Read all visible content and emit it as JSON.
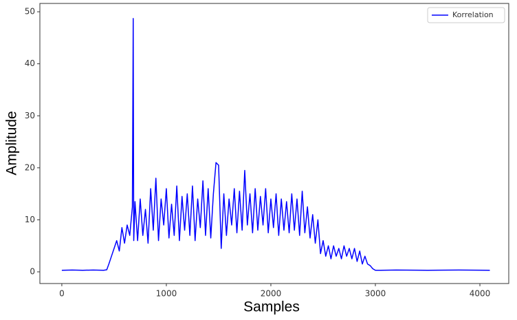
{
  "chart_data": {
    "type": "line",
    "x_label": "Samples",
    "y_label": "Amplitude",
    "x": [
      0,
      100,
      200,
      300,
      400,
      430,
      450,
      475,
      500,
      525,
      550,
      575,
      600,
      625,
      650,
      675,
      683,
      688,
      700,
      725,
      750,
      775,
      800,
      825,
      850,
      875,
      900,
      925,
      950,
      975,
      1000,
      1025,
      1050,
      1075,
      1100,
      1125,
      1150,
      1175,
      1200,
      1225,
      1250,
      1275,
      1300,
      1325,
      1350,
      1375,
      1400,
      1425,
      1450,
      1475,
      1500,
      1525,
      1550,
      1575,
      1600,
      1625,
      1650,
      1675,
      1700,
      1725,
      1750,
      1775,
      1800,
      1825,
      1850,
      1875,
      1900,
      1925,
      1950,
      1975,
      2000,
      2025,
      2050,
      2075,
      2100,
      2125,
      2150,
      2175,
      2200,
      2225,
      2250,
      2275,
      2300,
      2325,
      2350,
      2375,
      2400,
      2425,
      2450,
      2475,
      2500,
      2525,
      2550,
      2575,
      2600,
      2625,
      2650,
      2675,
      2700,
      2725,
      2750,
      2775,
      2800,
      2825,
      2850,
      2875,
      2900,
      2925,
      2950,
      2975,
      3000,
      3050,
      3200,
      3500,
      3800,
      4095
    ],
    "series": [
      {
        "name": "Korrelation",
        "color": "#0000ff",
        "values": [
          0.3,
          0.35,
          0.3,
          0.35,
          0.3,
          0.4,
          1.5,
          3,
          4.5,
          6,
          4,
          8.5,
          5.5,
          9,
          7,
          12.5,
          48.7,
          6,
          13.5,
          6,
          14,
          7,
          12,
          5.5,
          16,
          8,
          18,
          6,
          14,
          9,
          16,
          6.5,
          13,
          7,
          16.5,
          6,
          14.5,
          8,
          15,
          7,
          16.5,
          6,
          14,
          8.5,
          17.5,
          7,
          16,
          6.5,
          15,
          21,
          20.5,
          4.5,
          15,
          7,
          14,
          9,
          16,
          7.5,
          15.5,
          8,
          19.5,
          9,
          15,
          7.5,
          16,
          8,
          14.5,
          9,
          16,
          7.5,
          14,
          8.5,
          15,
          7,
          14,
          8,
          13.5,
          7.5,
          15,
          8,
          14,
          7,
          15.5,
          7.5,
          12.5,
          6.5,
          11,
          5.5,
          10,
          3.5,
          6,
          3,
          5,
          2.5,
          5,
          3,
          4.5,
          2.5,
          5,
          3,
          4.5,
          2.5,
          4.5,
          2,
          4,
          1.5,
          3,
          1.5,
          1.2,
          0.6,
          0.3,
          0.3,
          0.35,
          0.3,
          0.35,
          0.3
        ]
      }
    ],
    "xlim": [
      -210,
      4276
    ],
    "ylim": [
      -2.25,
      51.6
    ],
    "xticks": [
      0,
      1000,
      2000,
      3000,
      4000
    ],
    "yticks": [
      0,
      10,
      20,
      30,
      40,
      50
    ],
    "grid": false,
    "legend": "upper right"
  }
}
